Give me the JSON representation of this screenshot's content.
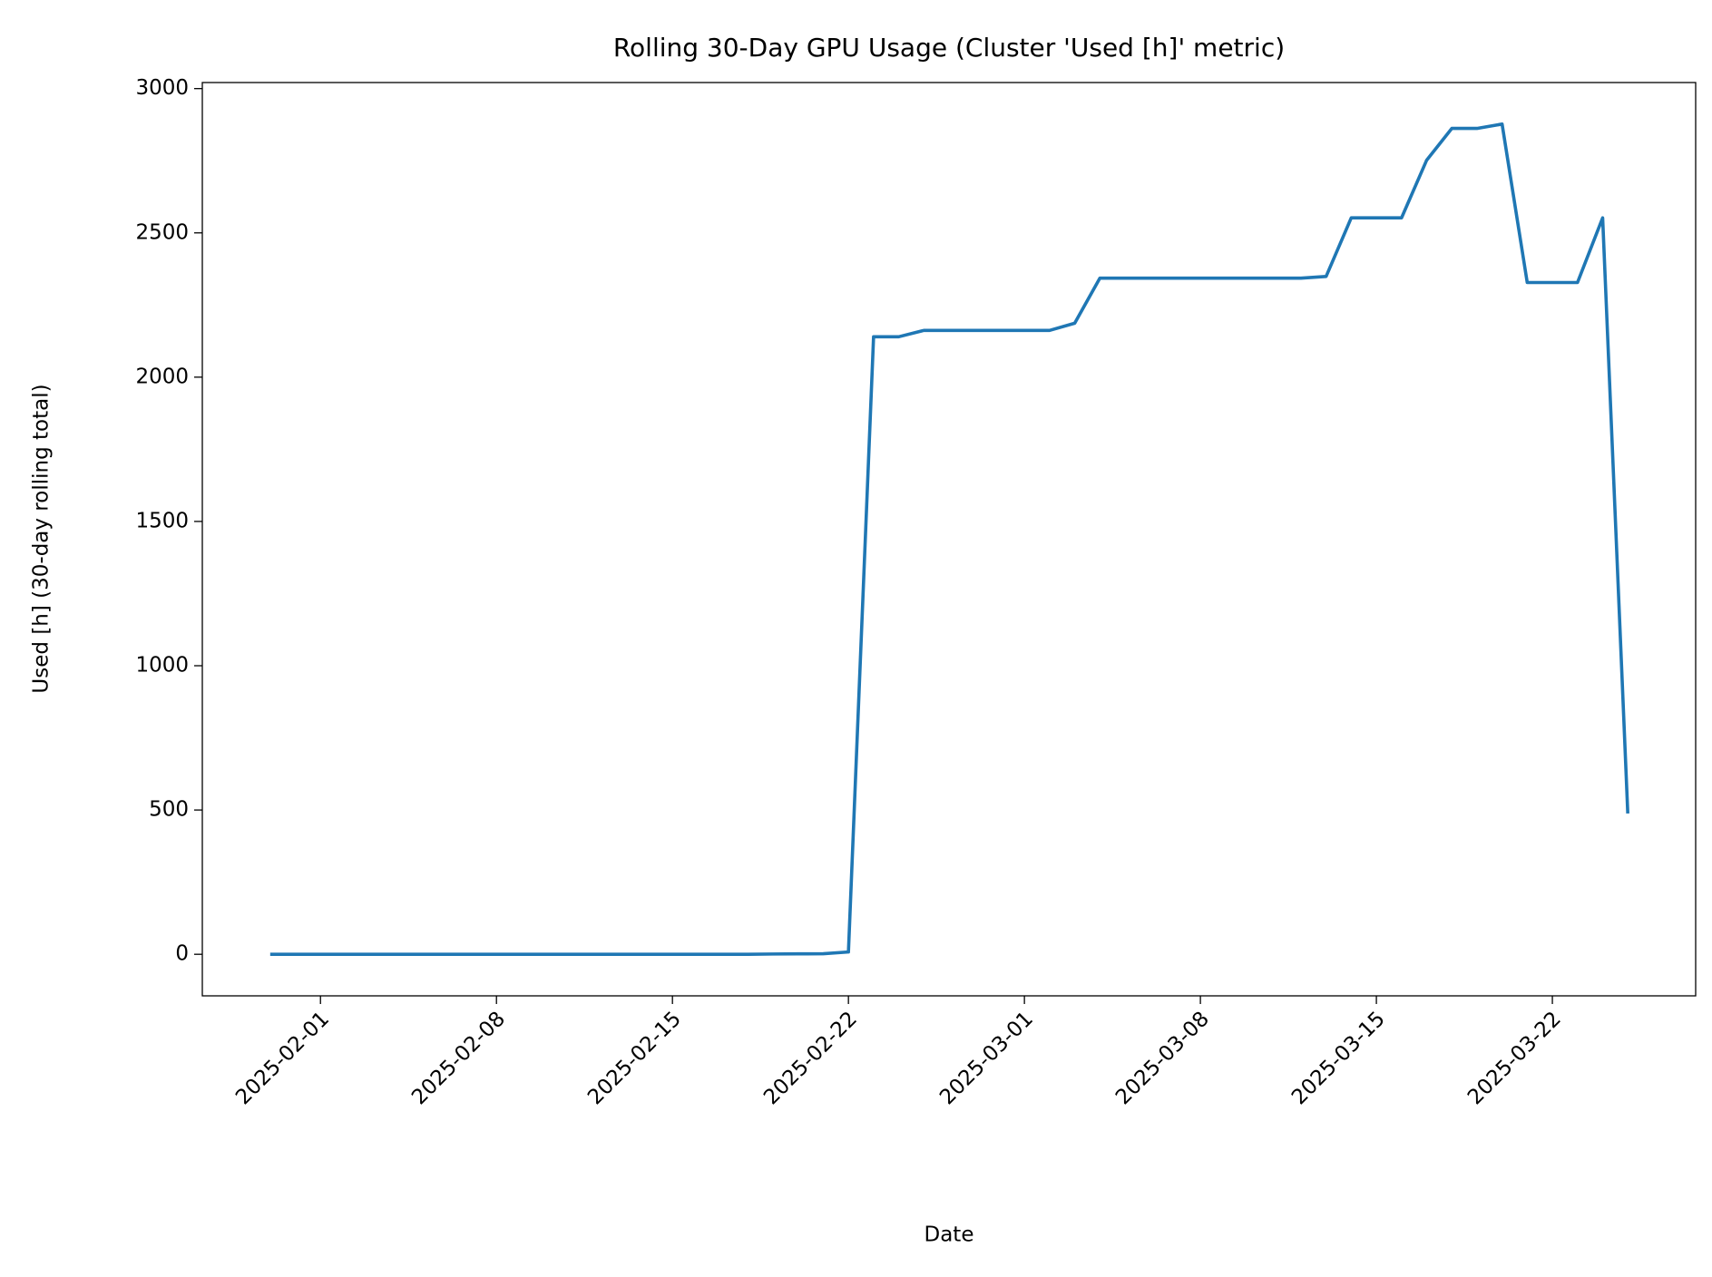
{
  "chart_data": {
    "type": "line",
    "title": "Rolling 30-Day GPU Usage (Cluster 'Used [h]' metric)",
    "x_label": "Date",
    "y_label": "Used [h] (30-day rolling total)",
    "x": [
      "2025-01-30",
      "2025-01-31",
      "2025-02-01",
      "2025-02-02",
      "2025-02-03",
      "2025-02-04",
      "2025-02-05",
      "2025-02-06",
      "2025-02-07",
      "2025-02-08",
      "2025-02-09",
      "2025-02-10",
      "2025-02-11",
      "2025-02-12",
      "2025-02-13",
      "2025-02-14",
      "2025-02-15",
      "2025-02-16",
      "2025-02-17",
      "2025-02-18",
      "2025-02-19",
      "2025-02-20",
      "2025-02-21",
      "2025-02-22",
      "2025-02-23",
      "2025-02-24",
      "2025-02-25",
      "2025-02-26",
      "2025-02-27",
      "2025-02-28",
      "2025-03-01",
      "2025-03-02",
      "2025-03-03",
      "2025-03-04",
      "2025-03-05",
      "2025-03-06",
      "2025-03-07",
      "2025-03-08",
      "2025-03-09",
      "2025-03-10",
      "2025-03-11",
      "2025-03-12",
      "2025-03-13",
      "2025-03-14",
      "2025-03-15",
      "2025-03-16",
      "2025-03-17",
      "2025-03-18",
      "2025-03-19",
      "2025-03-20",
      "2025-03-21",
      "2025-03-22",
      "2025-03-23",
      "2025-03-24",
      "2025-03-25"
    ],
    "series": [
      {
        "name": "Used [h]",
        "color": "#1f77b4",
        "values": [
          0,
          0,
          0,
          0,
          0,
          0,
          0,
          0,
          0,
          0,
          0,
          0,
          0,
          0,
          0,
          0,
          0,
          0,
          0,
          0,
          1,
          1.5,
          2,
          8,
          2140,
          2140,
          2162,
          2162,
          2162,
          2162,
          2162,
          2162,
          2187,
          2343,
          2343,
          2343,
          2343,
          2343,
          2343,
          2343,
          2343,
          2343,
          2349,
          2552,
          2552,
          2552,
          2752,
          2862,
          2862,
          2877,
          2328,
          2328,
          2328,
          2552,
          488
        ]
      }
    ],
    "xlim": [
      "2025-01-27T07:12Z",
      "2025-03-27T16:48Z"
    ],
    "xticks": [
      "2025-02-01",
      "2025-02-08",
      "2025-02-15",
      "2025-02-22",
      "2025-03-01",
      "2025-03-08",
      "2025-03-15",
      "2025-03-22"
    ],
    "ylim": [
      -144,
      3021
    ],
    "yticks": [
      0,
      500,
      1000,
      1500,
      2000,
      2500,
      3000
    ],
    "grid": false
  }
}
